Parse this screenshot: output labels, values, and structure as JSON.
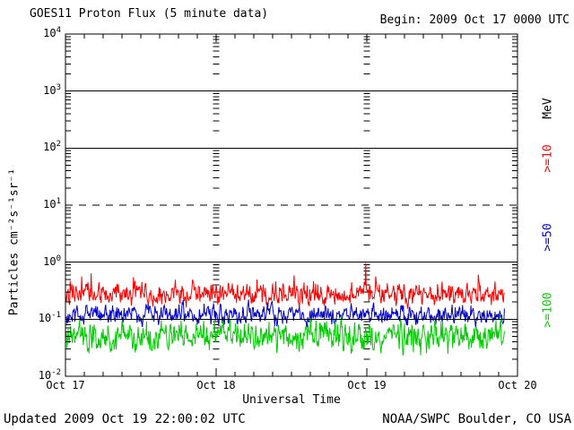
{
  "footer": {
    "updated": "Updated 2009 Oct 19 22:00:02 UTC",
    "source": "NOAA/SWPC Boulder, CO USA"
  },
  "chart_data": {
    "type": "line",
    "y_scale": "log",
    "title": "GOES11 Proton Flux (5 minute data)",
    "begin_label": "Begin: 2009 Oct 17 0000 UTC",
    "xlabel": "Universal Time",
    "ylabel": "Particles cm⁻²s⁻¹sr⁻¹",
    "unit_label": "MeV",
    "ylim": [
      0.01,
      10000
    ],
    "y_tick_exponents": [
      4,
      3,
      2,
      1,
      0,
      -1,
      -2
    ],
    "x_tick_labels": [
      "Oct 17",
      "Oct 18",
      "Oct 19",
      "Oct 20"
    ],
    "x_minor_tick_hours": 3,
    "days_shown": 3,
    "cadence_minutes": 5,
    "data_end_day_fraction": 2.917,
    "solid_gridline_exponents": [
      3,
      2,
      0,
      -1
    ],
    "dashed_threshold_exponent": 1,
    "day_gridlines_at": [
      "Oct 18",
      "Oct 19"
    ],
    "grid": "on",
    "legend_position": "right-margin-rotated",
    "axis_color": "#000000",
    "text_color": "#000000",
    "background": "#ffffff",
    "series": [
      {
        "label": ">=10",
        "unit": "MeV",
        "color": "#ff0000",
        "description": "noisy quiet-time band",
        "median_flux": 0.26,
        "flux_range": [
          0.12,
          0.7
        ],
        "log10_center": -0.56,
        "log10_amplitude": 0.36,
        "has_spikes": true
      },
      {
        "label": ">=50",
        "unit": "MeV",
        "color": "#0000cc",
        "description": "noisy quiet-time band",
        "median_flux": 0.12,
        "flux_range": [
          0.07,
          0.28
        ],
        "log10_center": -0.92,
        "log10_amplitude": 0.32
      },
      {
        "label": ">=100",
        "unit": "MeV",
        "color": "#00cc00",
        "description": "noisy quiet-time band with flat background floor",
        "median_flux": 0.05,
        "flux_range": [
          0.022,
          0.13
        ],
        "log10_center": -1.3,
        "log10_amplitude": 0.5,
        "log10_floor": -1.64,
        "log10_cap": -0.88
      }
    ]
  }
}
